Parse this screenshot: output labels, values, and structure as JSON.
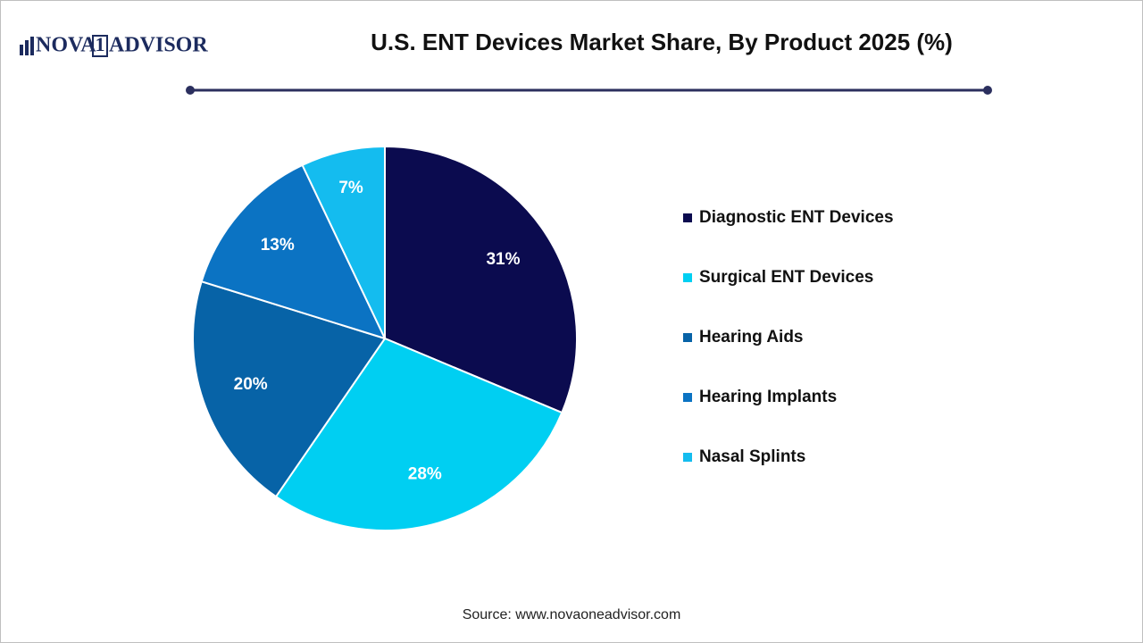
{
  "chart_data": {
    "type": "pie",
    "title": "U.S. ENT Devices Market Share, By Product 2025 (%)",
    "logo": [
      "NOVA",
      "1",
      "ADVISOR"
    ],
    "source": "Source: www.novaoneadvisor.com",
    "categories": [
      "Diagnostic ENT Devices",
      "Surgical ENT Devices",
      "Hearing Aids",
      "Hearing Implants",
      "Nasal Splints"
    ],
    "values": [
      31,
      28,
      20,
      13,
      7
    ],
    "value_labels": [
      "31%",
      "28%",
      "20%",
      "13%",
      "7%"
    ],
    "colors": [
      "#0b0b4f",
      "#00cff2",
      "#0763a7",
      "#0b73c3",
      "#14bcef"
    ],
    "legend": "right"
  }
}
